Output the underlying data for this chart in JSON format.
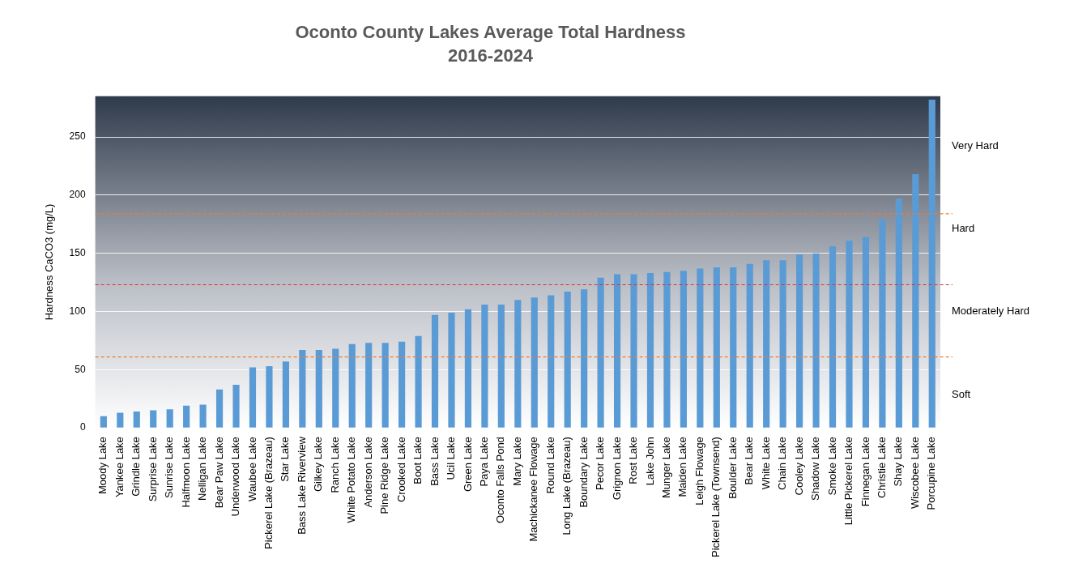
{
  "chart_data": {
    "type": "bar",
    "title": "Oconto County Lakes Average Total Hardness",
    "subtitle": "2016-2024",
    "ylabel": "Hardness CaCO3 (mg/L)",
    "categories": [
      "Moody Lake",
      "Yankee Lake",
      "Grindle Lake",
      "Surprise Lake",
      "Sunrise Lake",
      "Halfmoon Lake",
      "Nelligan Lake",
      "Bear Paw Lake",
      "Underwood Lake",
      "Waubee Lake",
      "Pickerel Lake (Brazeau)",
      "Star Lake",
      "Bass Lake Riverview",
      "Gilkey Lake",
      "Ranch Lake",
      "White Potato Lake",
      "Anderson Lake",
      "Pine Ridge Lake",
      "Crooked Lake",
      "Boot Lake",
      "Bass Lake",
      "Ucil Lake",
      "Green Lake",
      "Paya Lake",
      "Oconto Falls Pond",
      "Mary Lake",
      "Machickanee Flowage",
      "Round Lake",
      "Long Lake (Brazeau)",
      "Boundary Lake",
      "Pecor Lake",
      "Grignon Lake",
      "Rost Lake",
      "Lake John",
      "Munger Lake",
      "Maiden Lake",
      "Leigh Flowage",
      "Pickerel Lake (Townsend)",
      "Boulder Lake",
      "Bear Lake",
      "White Lake",
      "Chain Lake",
      "Cooley Lake",
      "Shadow Lake",
      "Smoke Lake",
      "Little Pickerel Lake",
      "Finnegan Lake",
      "Christie Lake",
      "Shay Lake",
      "Wiscobee Lake",
      "Porcupine Lake"
    ],
    "values": [
      10,
      13,
      14,
      15,
      16,
      19,
      20,
      33,
      37,
      52,
      53,
      57,
      67,
      67,
      68,
      72,
      73,
      73,
      74,
      79,
      97,
      99,
      102,
      106,
      106,
      110,
      112,
      114,
      117,
      119,
      129,
      132,
      132,
      133,
      134,
      135,
      137,
      138,
      138,
      141,
      144,
      144,
      149,
      150,
      156,
      161,
      164,
      179,
      197,
      218,
      282
    ],
    "color": "#5b9bd5",
    "ylim": [
      0,
      285
    ],
    "yticks": [
      0,
      50,
      100,
      150,
      200,
      250
    ],
    "grid": "y",
    "ref_lines": [
      {
        "axis": "y",
        "value": 61,
        "color": "#ed7d31",
        "line_style": "dashed"
      },
      {
        "axis": "y",
        "value": 123,
        "color": "#e03030",
        "line_style": "dashed"
      },
      {
        "axis": "y",
        "value": 184,
        "color": "#ed7d31",
        "line_style": "dashed"
      }
    ],
    "annotations": [
      "Soft",
      "Moderately Hard",
      "Hard",
      "Very Hard"
    ]
  }
}
